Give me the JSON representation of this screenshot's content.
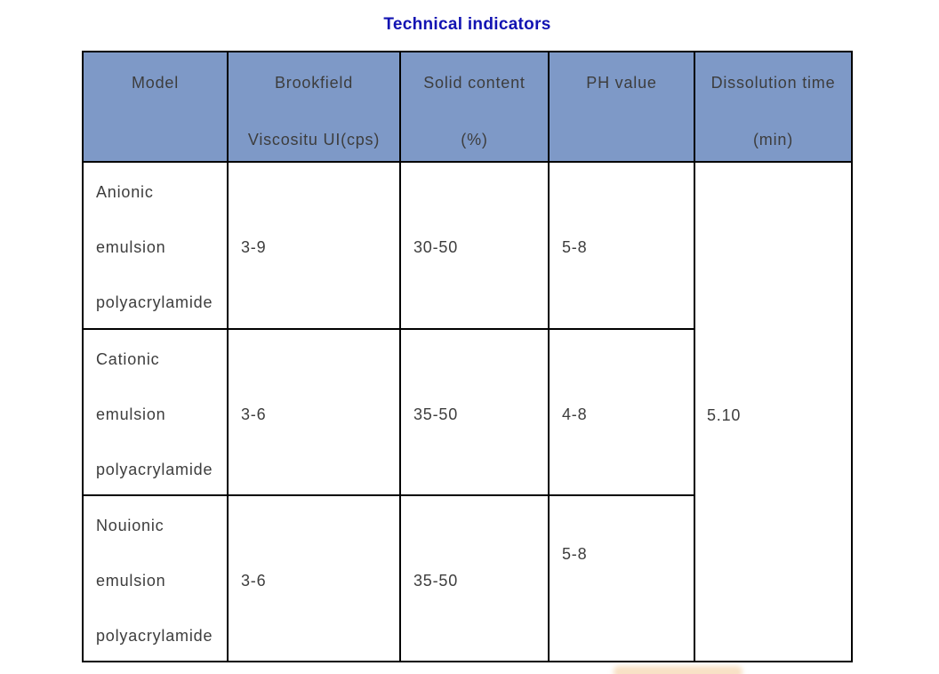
{
  "title": "Technical indicators",
  "colors": {
    "header_bg": "#7e99c7",
    "title_color": "#1213b2",
    "border_color": "#000000",
    "text_color": "#3d3d3d"
  },
  "table": {
    "columns": [
      {
        "line1": "Model",
        "line2": ""
      },
      {
        "line1": "Brookfield",
        "line2": "Viscositu UI(cps)"
      },
      {
        "line1": "Solid content",
        "line2": "(%)"
      },
      {
        "line1": "PH value",
        "line2": ""
      },
      {
        "line1": "Dissolution time",
        "line2": "(min)"
      }
    ],
    "rows": [
      {
        "model": [
          "Anionic",
          "emulsion",
          "polyacrylamide"
        ],
        "viscosity": "3-9",
        "solid": "30-50",
        "ph": "5-8"
      },
      {
        "model": [
          "Cationic",
          "emulsion",
          "polyacrylamide"
        ],
        "viscosity": "3-6",
        "solid": "35-50",
        "ph": "4-8"
      },
      {
        "model": [
          "Nouionic",
          "emulsion",
          "polyacrylamide"
        ],
        "viscosity": "3-6",
        "solid": "35-50",
        "ph": "5-8"
      }
    ],
    "dissolution_time": "5.10"
  },
  "chart_data": {
    "type": "table",
    "title": "Technical indicators",
    "columns": [
      "Model",
      "Brookfield Viscositu UI(cps)",
      "Solid content (%)",
      "PH value",
      "Dissolution time (min)"
    ],
    "rows": [
      [
        "Anionic emulsion polyacrylamide",
        "3-9",
        "30-50",
        "5-8",
        "5.10"
      ],
      [
        "Cationic emulsion polyacrylamide",
        "3-6",
        "35-50",
        "4-8",
        "5.10"
      ],
      [
        "Nouionic emulsion polyacrylamide",
        "3-6",
        "35-50",
        "5-8",
        "5.10"
      ]
    ],
    "notes": "Dissolution time cell 5.10 is merged across all three rows"
  }
}
